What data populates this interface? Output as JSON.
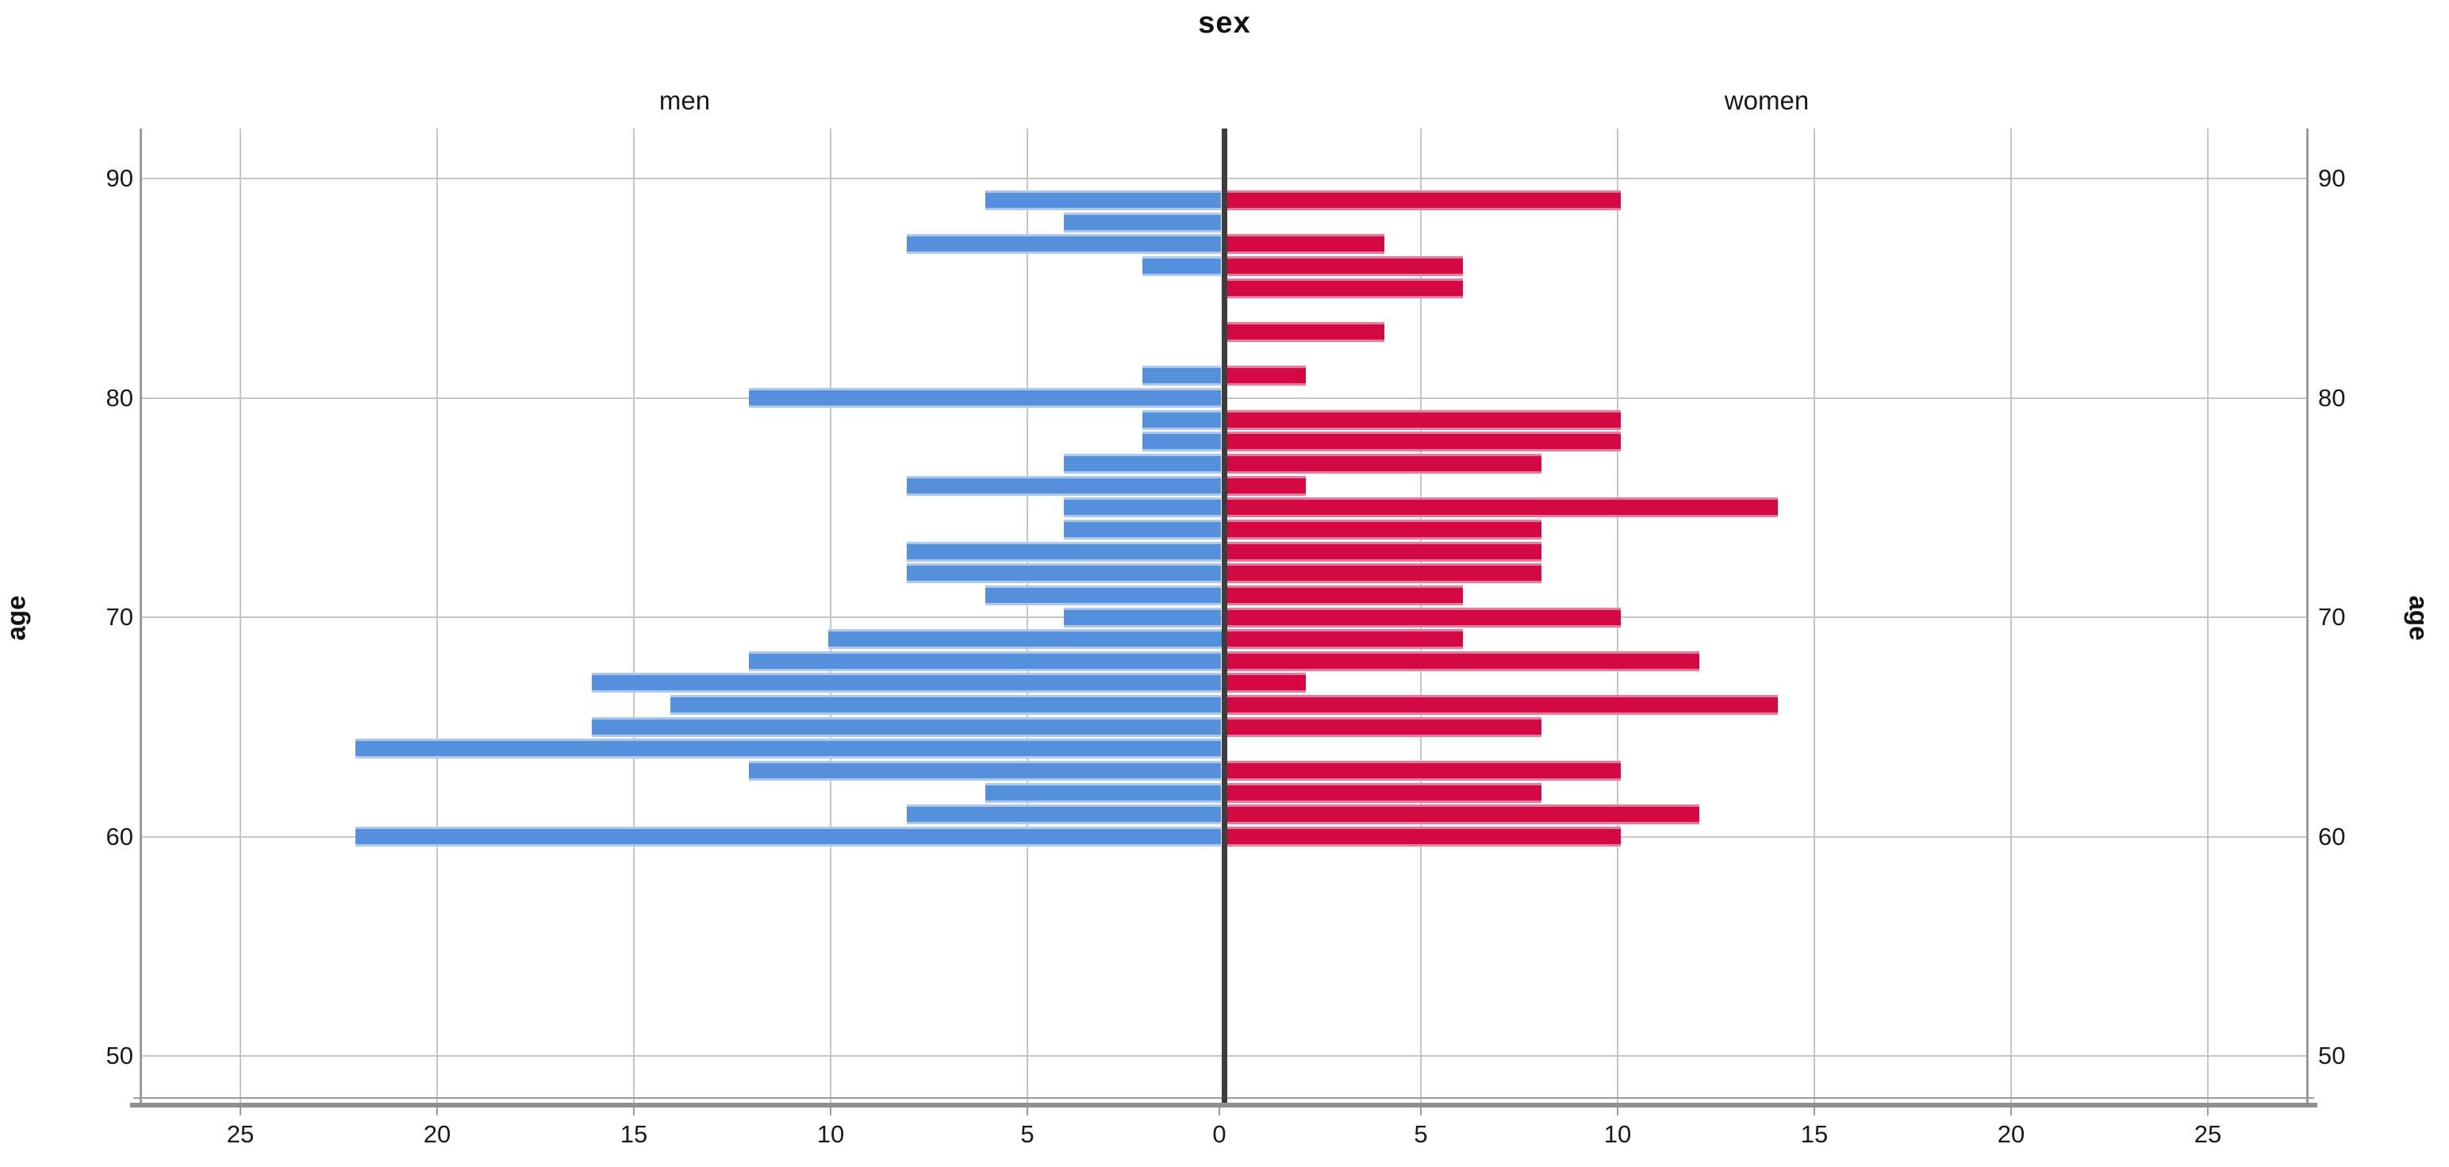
{
  "title": "sex",
  "panel_labels": {
    "men": "men",
    "women": "women"
  },
  "y_axis": {
    "label_left": "age",
    "label_right": "age",
    "tick_labels": [
      "90",
      "80",
      "70",
      "60",
      "50"
    ]
  },
  "x_axis": {
    "left_tick_labels": [
      "25",
      "20",
      "15",
      "10",
      "5"
    ],
    "zero_label": "0",
    "right_tick_labels": [
      "5",
      "10",
      "15",
      "20",
      "25"
    ]
  },
  "colors": {
    "men_bar": "#5590dc",
    "men_bar_edge": "#aac8f0",
    "women_bar": "#d40943",
    "women_bar_edge": "#e8799b",
    "grid": "#c6c6c6",
    "frame": "#9b9b9b",
    "center_line": "#3d3d3d",
    "axis_line": "#8f8f8f",
    "text": "#1a1a1a"
  },
  "chart_data": {
    "type": "bar",
    "subtype": "population-pyramid",
    "title": "sex",
    "left_panel_label": "men",
    "right_panel_label": "women",
    "age_axis_label": "age",
    "y_tick_ages": [
      90,
      80,
      70,
      60,
      50
    ],
    "y_axis_range": [
      47.5,
      92.5
    ],
    "x_tick_counts_each_side": [
      0,
      5,
      10,
      15,
      20,
      25
    ],
    "x_axis_max_each_side": 27.5,
    "grid": true,
    "legend_position": "none",
    "ages": [
      60,
      61,
      62,
      63,
      64,
      65,
      66,
      67,
      68,
      69,
      70,
      71,
      72,
      73,
      74,
      75,
      76,
      77,
      78,
      79,
      80,
      81,
      82,
      83,
      84,
      85,
      86,
      87,
      88,
      89
    ],
    "series": [
      {
        "name": "men",
        "side": "left",
        "values": [
          22,
          8,
          6,
          12,
          22,
          16,
          14,
          16,
          12,
          10,
          4,
          6,
          8,
          8,
          4,
          4,
          8,
          4,
          2,
          2,
          12,
          2,
          0,
          0,
          0,
          0,
          2,
          8,
          4,
          6
        ]
      },
      {
        "name": "women",
        "side": "right",
        "values": [
          10,
          12,
          8,
          10,
          0,
          8,
          14,
          2,
          12,
          6,
          10,
          6,
          8,
          8,
          8,
          14,
          2,
          8,
          10,
          10,
          0,
          2,
          0,
          4,
          0,
          6,
          6,
          4,
          0,
          10
        ]
      }
    ]
  }
}
